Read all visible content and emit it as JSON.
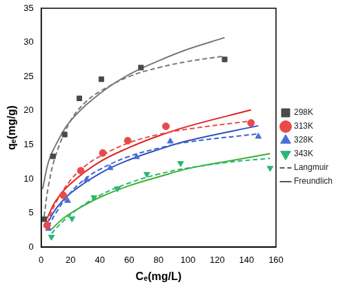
{
  "chart_data": {
    "type": "scatter",
    "x_label": "Cₑ(mg/L)",
    "y_label": "qₑ(mg/g)",
    "xlim": [
      0,
      160
    ],
    "xticks": [
      0,
      20,
      40,
      60,
      80,
      100,
      120,
      140,
      160
    ],
    "ylim": [
      0,
      35
    ],
    "yticks": [
      0,
      5,
      10,
      15,
      20,
      25,
      30,
      35
    ],
    "grid": false,
    "legend": "right",
    "series": [
      {
        "name": "298K",
        "color": "#4a4a4a",
        "marker": "square",
        "x": [
          2,
          8,
          16,
          26,
          41,
          68,
          125
        ],
        "values": [
          4.1,
          13.3,
          16.5,
          21.8,
          24.6,
          26.3,
          27.5
        ]
      },
      {
        "name": "313K",
        "color": "#e84a4a",
        "marker": "circle",
        "x": [
          4,
          15,
          27,
          42,
          59,
          85,
          143
        ],
        "values": [
          3.2,
          7.6,
          11.2,
          13.8,
          15.6,
          17.7,
          18.2
        ]
      },
      {
        "name": "328K",
        "color": "#4a6fd8",
        "marker": "triangle",
        "x": [
          5,
          18,
          31,
          47,
          65,
          88,
          148
        ],
        "values": [
          2.7,
          6.8,
          9.9,
          11.6,
          13.2,
          15.5,
          16.2
        ]
      },
      {
        "name": "343K",
        "color": "#2bb673",
        "marker": "triangle_down",
        "x": [
          7,
          21,
          36,
          52,
          72,
          95,
          156
        ],
        "values": [
          1.5,
          4.2,
          7.3,
          8.6,
          10.7,
          12.3,
          11.6
        ]
      }
    ],
    "fits": [
      {
        "name": "Langmuir",
        "color": "#555555",
        "line_style": "dashed",
        "curves": [
          {
            "color": "#777777",
            "x": [
              2,
              5,
              10,
              20,
              30,
              40,
              60,
              80,
              100,
              125
            ],
            "values": [
              4.5,
              9,
              13.5,
              18.5,
              21.2,
              22.8,
              25,
              26.3,
              27.2,
              28
            ]
          },
          {
            "color": "#e84a4a",
            "x": [
              4,
              10,
              20,
              30,
              40,
              60,
              80,
              100,
              143
            ],
            "values": [
              3.5,
              6.5,
              9.8,
              11.9,
              13.3,
              15.3,
              16.5,
              17.3,
              18.5
            ]
          },
          {
            "color": "#3d62c8",
            "x": [
              5,
              10,
              20,
              30,
              40,
              60,
              80,
              100,
              148
            ],
            "values": [
              3,
              5,
              8,
              10,
              11.4,
              13.3,
              14.5,
              15.4,
              16.6
            ]
          },
          {
            "color": "#2bb673",
            "x": [
              7,
              15,
              25,
              40,
              60,
              80,
              100,
              130,
              156
            ],
            "values": [
              2,
              3.8,
              5.6,
              7.6,
              9.4,
              10.7,
              11.6,
              12.5,
              13
            ]
          }
        ]
      },
      {
        "name": "Freundlich",
        "color": "#555555",
        "line_style": "solid",
        "curves": [
          {
            "color": "#777777",
            "x": [
              1,
              5,
              10,
              20,
              40,
              60,
              80,
              100,
              125
            ],
            "values": [
              8.5,
              12.5,
              15,
              18.5,
              22.5,
              25.3,
              27.3,
              29,
              30.7
            ]
          },
          {
            "color": "#e02020",
            "x": [
              4,
              10,
              20,
              40,
              60,
              80,
              100,
              143
            ],
            "values": [
              4.2,
              6.8,
              9.3,
              12.5,
              14.6,
              16.3,
              17.7,
              20.1
            ]
          },
          {
            "color": "#2a4fc0",
            "x": [
              5,
              10,
              20,
              40,
              60,
              80,
              100,
              148
            ],
            "values": [
              3.8,
              5.6,
              7.9,
              10.8,
              12.8,
              14.3,
              15.6,
              17.8
            ]
          },
          {
            "color": "#3ab030",
            "x": [
              7,
              15,
              25,
              40,
              60,
              80,
              100,
              130,
              156
            ],
            "values": [
              2.6,
              4.2,
              5.6,
              7.3,
              9,
              10.3,
              11.5,
              12.7,
              13.7
            ]
          }
        ]
      }
    ]
  }
}
